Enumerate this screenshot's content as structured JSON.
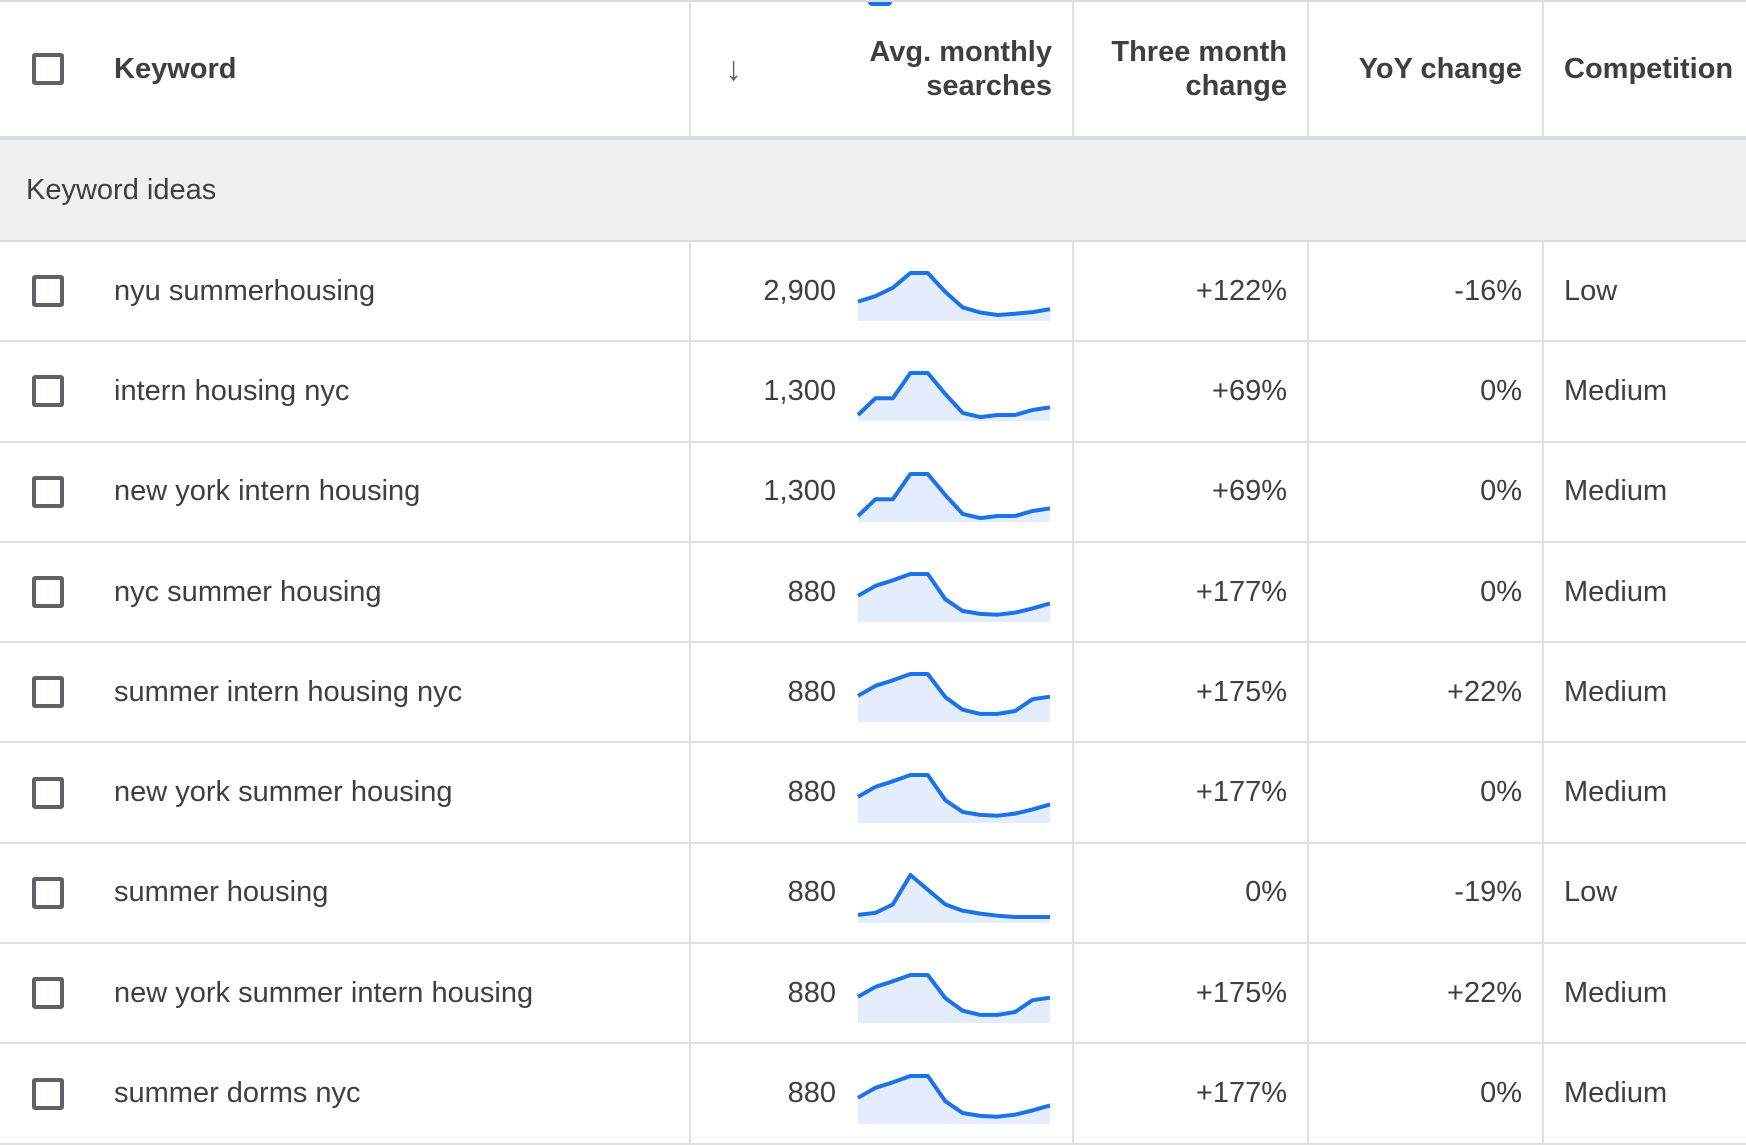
{
  "header": {
    "keyword": "Keyword",
    "sort_icon": "arrow-down-icon",
    "avg_line1": "Avg. monthly",
    "avg_line2": "searches",
    "three_line1": "Three month",
    "three_line2": "change",
    "yoy": "YoY change",
    "competition": "Competition"
  },
  "group": {
    "label": "Keyword ideas"
  },
  "colors": {
    "spark_line": "#1a73e8",
    "spark_fill": "#e3edfb",
    "group_bg": "#eef1f2"
  },
  "rows": [
    {
      "keyword": "nyu summerhousing",
      "avg": "2,900",
      "three": "+122%",
      "yoy": "-16%",
      "competition": "Low",
      "trend": [
        0.32,
        0.45,
        0.65,
        1.0,
        1.0,
        0.55,
        0.18,
        0.06,
        0.0,
        0.03,
        0.07,
        0.14
      ]
    },
    {
      "keyword": "intern housing nyc",
      "avg": "1,300",
      "three": "+69%",
      "yoy": "0%",
      "competition": "Medium",
      "trend": [
        0.0,
        0.4,
        0.4,
        1.0,
        1.0,
        0.5,
        0.05,
        -0.05,
        0.0,
        0.0,
        0.12,
        0.18
      ]
    },
    {
      "keyword": "new york intern housing",
      "avg": "1,300",
      "three": "+69%",
      "yoy": "0%",
      "competition": "Medium",
      "trend": [
        0.0,
        0.4,
        0.4,
        1.0,
        1.0,
        0.5,
        0.05,
        -0.05,
        0.0,
        0.0,
        0.12,
        0.18
      ]
    },
    {
      "keyword": "nyc summer housing",
      "avg": "880",
      "three": "+177%",
      "yoy": "0%",
      "competition": "Medium",
      "trend": [
        0.48,
        0.72,
        0.85,
        1.0,
        1.0,
        0.4,
        0.12,
        0.05,
        0.03,
        0.08,
        0.18,
        0.3
      ]
    },
    {
      "keyword": "summer intern housing nyc",
      "avg": "880",
      "three": "+175%",
      "yoy": "+22%",
      "competition": "Medium",
      "trend": [
        0.48,
        0.72,
        0.85,
        1.0,
        1.0,
        0.45,
        0.15,
        0.05,
        0.05,
        0.12,
        0.4,
        0.46
      ]
    },
    {
      "keyword": "new york summer housing",
      "avg": "880",
      "three": "+177%",
      "yoy": "0%",
      "competition": "Medium",
      "trend": [
        0.48,
        0.72,
        0.85,
        1.0,
        1.0,
        0.4,
        0.12,
        0.05,
        0.03,
        0.08,
        0.18,
        0.3
      ]
    },
    {
      "keyword": "summer housing",
      "avg": "880",
      "three": "0%",
      "yoy": "-19%",
      "competition": "Low",
      "trend": [
        0.05,
        0.1,
        0.3,
        1.0,
        0.65,
        0.3,
        0.15,
        0.08,
        0.03,
        0.0,
        0.0,
        0.0
      ]
    },
    {
      "keyword": "new york summer intern housing",
      "avg": "880",
      "three": "+175%",
      "yoy": "+22%",
      "competition": "Medium",
      "trend": [
        0.48,
        0.72,
        0.85,
        1.0,
        1.0,
        0.45,
        0.15,
        0.05,
        0.05,
        0.12,
        0.4,
        0.46
      ]
    },
    {
      "keyword": "summer dorms nyc",
      "avg": "880",
      "three": "+177%",
      "yoy": "0%",
      "competition": "Medium",
      "trend": [
        0.48,
        0.72,
        0.85,
        1.0,
        1.0,
        0.4,
        0.12,
        0.05,
        0.03,
        0.08,
        0.18,
        0.3
      ]
    }
  ]
}
